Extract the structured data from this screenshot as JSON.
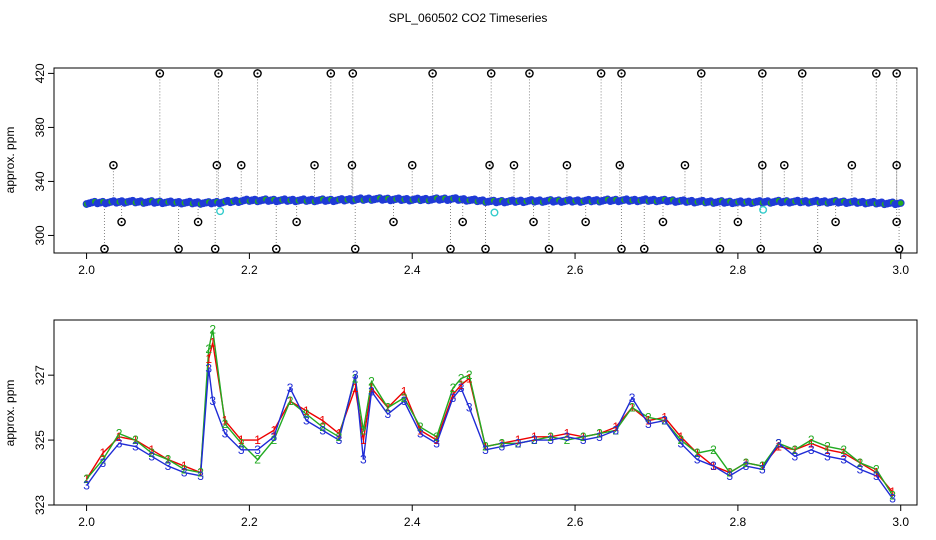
{
  "figure": {
    "title": "SPL_060502  CO2 Timeseries"
  },
  "chart_data": [
    {
      "type": "scatter",
      "ylabel": "approx. ppm",
      "xlabel": "",
      "xlim": [
        1.96,
        3.02
      ],
      "ylim": [
        287,
        424
      ],
      "xticks": [
        2.0,
        2.2,
        2.4,
        2.6,
        2.8,
        3.0
      ],
      "xtick_labels": [
        "2.0",
        "2.2",
        "2.4",
        "2.6",
        "2.8",
        "3.0"
      ],
      "yticks": [
        300,
        340,
        380,
        420
      ],
      "ytick_labels": [
        "300",
        "340",
        "380",
        "420"
      ],
      "colors": {
        "main": "#1f3ad6",
        "inner": "#22aa22",
        "outlier": "#000000",
        "cyan": "#33cccc",
        "dropline": "#888888"
      },
      "series": [
        {
          "x": [
            2.0,
            2.05,
            2.1,
            2.15,
            2.2,
            2.25,
            2.3,
            2.35,
            2.4,
            2.45,
            2.5,
            2.55,
            2.6,
            2.65,
            2.7,
            2.75,
            2.8,
            2.85,
            2.9,
            2.95,
            3.0
          ],
          "values": [
            324,
            325,
            324.5,
            324,
            326,
            326,
            326,
            327,
            326.5,
            327,
            325,
            325.5,
            325.5,
            326,
            326,
            325,
            324.5,
            325,
            325,
            324.5,
            323.5
          ]
        }
      ],
      "outliers_high": [
        2.09,
        2.162,
        2.21,
        2.3,
        2.327,
        2.425,
        2.497,
        2.544,
        2.632,
        2.657,
        2.755,
        2.83,
        2.879,
        2.97,
        2.995
      ],
      "outliers_mid": [
        2.033,
        2.16,
        2.19,
        2.28,
        2.326,
        2.4,
        2.495,
        2.525,
        2.59,
        2.655,
        2.735,
        2.83,
        2.857,
        2.94,
        2.995
      ],
      "outliers_low": [
        2.022,
        2.113,
        2.158,
        2.233,
        2.33,
        2.447,
        2.49,
        2.568,
        2.657,
        2.685,
        2.778,
        2.828,
        2.898,
        2.998
      ],
      "outliers_310": [
        2.043,
        2.137,
        2.258,
        2.377,
        2.462,
        2.549,
        2.613,
        2.708,
        2.8,
        2.92,
        2.995
      ],
      "cyan_points": [
        {
          "x": 2.164,
          "y": 318
        },
        {
          "x": 2.501,
          "y": 317
        },
        {
          "x": 2.831,
          "y": 319
        }
      ]
    },
    {
      "type": "line",
      "ylabel": "approx. ppm",
      "xlabel": "",
      "xlim": [
        1.96,
        3.02
      ],
      "ylim": [
        323,
        328.7
      ],
      "xticks": [
        2.0,
        2.2,
        2.4,
        2.6,
        2.8,
        3.0
      ],
      "xtick_labels": [
        "2.0",
        "2.2",
        "2.4",
        "2.6",
        "2.8",
        "3.0"
      ],
      "yticks": [
        323,
        325,
        327
      ],
      "ytick_labels": [
        "323",
        "325",
        "327"
      ],
      "series": [
        {
          "name": "1",
          "color": "#ee0000",
          "x": [
            2.0,
            2.02,
            2.04,
            2.06,
            2.08,
            2.1,
            2.12,
            2.14,
            2.15,
            2.155,
            2.17,
            2.19,
            2.21,
            2.23,
            2.25,
            2.27,
            2.29,
            2.31,
            2.33,
            2.34,
            2.35,
            2.37,
            2.39,
            2.41,
            2.43,
            2.45,
            2.46,
            2.47,
            2.49,
            2.51,
            2.53,
            2.55,
            2.57,
            2.59,
            2.61,
            2.63,
            2.65,
            2.67,
            2.69,
            2.71,
            2.73,
            2.75,
            2.77,
            2.79,
            2.81,
            2.83,
            2.85,
            2.87,
            2.89,
            2.91,
            2.93,
            2.95,
            2.97,
            2.99
          ],
          "values": [
            323.8,
            324.6,
            325.1,
            325.0,
            324.7,
            324.4,
            324.2,
            324.0,
            327.5,
            328.0,
            325.6,
            325.0,
            325.0,
            325.3,
            326.2,
            325.9,
            325.6,
            325.2,
            326.6,
            325.0,
            326.6,
            326.0,
            326.5,
            325.3,
            325.0,
            326.4,
            326.7,
            326.9,
            324.8,
            324.9,
            325.0,
            325.1,
            325.1,
            325.2,
            325.1,
            325.2,
            325.4,
            326.0,
            325.6,
            325.7,
            325.1,
            324.6,
            324.2,
            324.0,
            324.3,
            324.2,
            324.8,
            324.7,
            324.9,
            324.7,
            324.6,
            324.3,
            324.0,
            323.4
          ]
        },
        {
          "name": "2",
          "color": "#22aa22",
          "x": [
            2.0,
            2.02,
            2.04,
            2.06,
            2.08,
            2.1,
            2.12,
            2.14,
            2.15,
            2.155,
            2.17,
            2.19,
            2.21,
            2.23,
            2.25,
            2.27,
            2.29,
            2.31,
            2.33,
            2.34,
            2.35,
            2.37,
            2.39,
            2.41,
            2.43,
            2.45,
            2.46,
            2.47,
            2.49,
            2.51,
            2.53,
            2.55,
            2.57,
            2.59,
            2.61,
            2.63,
            2.65,
            2.67,
            2.69,
            2.71,
            2.73,
            2.75,
            2.77,
            2.79,
            2.81,
            2.83,
            2.85,
            2.87,
            2.89,
            2.91,
            2.93,
            2.95,
            2.97,
            2.99
          ],
          "values": [
            323.8,
            324.4,
            325.2,
            325.0,
            324.6,
            324.4,
            324.1,
            324.0,
            327.8,
            328.4,
            325.5,
            324.9,
            324.4,
            325.0,
            326.2,
            325.8,
            325.4,
            325.1,
            326.9,
            325.3,
            326.8,
            326.0,
            326.3,
            325.4,
            325.1,
            326.6,
            326.9,
            327.0,
            324.8,
            324.9,
            324.9,
            325.0,
            325.1,
            325.0,
            325.1,
            325.2,
            325.3,
            326.0,
            325.7,
            325.6,
            325.0,
            324.6,
            324.7,
            324.0,
            324.3,
            324.2,
            324.9,
            324.7,
            325.0,
            324.8,
            324.7,
            324.3,
            324.1,
            323.3
          ]
        },
        {
          "name": "3",
          "color": "#1f2bd6",
          "x": [
            2.0,
            2.02,
            2.04,
            2.06,
            2.08,
            2.1,
            2.12,
            2.14,
            2.15,
            2.155,
            2.17,
            2.19,
            2.21,
            2.23,
            2.25,
            2.27,
            2.29,
            2.31,
            2.33,
            2.34,
            2.35,
            2.37,
            2.39,
            2.41,
            2.43,
            2.45,
            2.46,
            2.47,
            2.49,
            2.51,
            2.53,
            2.55,
            2.57,
            2.59,
            2.61,
            2.63,
            2.65,
            2.67,
            2.69,
            2.71,
            2.73,
            2.75,
            2.77,
            2.79,
            2.81,
            2.83,
            2.85,
            2.87,
            2.89,
            2.91,
            2.93,
            2.95,
            2.97,
            2.99
          ],
          "values": [
            323.6,
            324.3,
            324.9,
            324.8,
            324.5,
            324.2,
            324.0,
            323.9,
            327.2,
            326.2,
            325.2,
            324.7,
            324.7,
            325.1,
            326.6,
            325.6,
            325.3,
            325.0,
            327.0,
            324.4,
            326.5,
            325.8,
            326.2,
            325.2,
            324.9,
            326.3,
            326.6,
            326.0,
            324.7,
            324.8,
            324.9,
            325.0,
            325.0,
            325.1,
            325.0,
            325.1,
            325.3,
            326.3,
            325.5,
            325.6,
            324.9,
            324.4,
            324.2,
            323.9,
            324.2,
            324.1,
            324.9,
            324.5,
            324.7,
            324.5,
            324.4,
            324.1,
            323.9,
            323.2
          ]
        }
      ]
    }
  ]
}
